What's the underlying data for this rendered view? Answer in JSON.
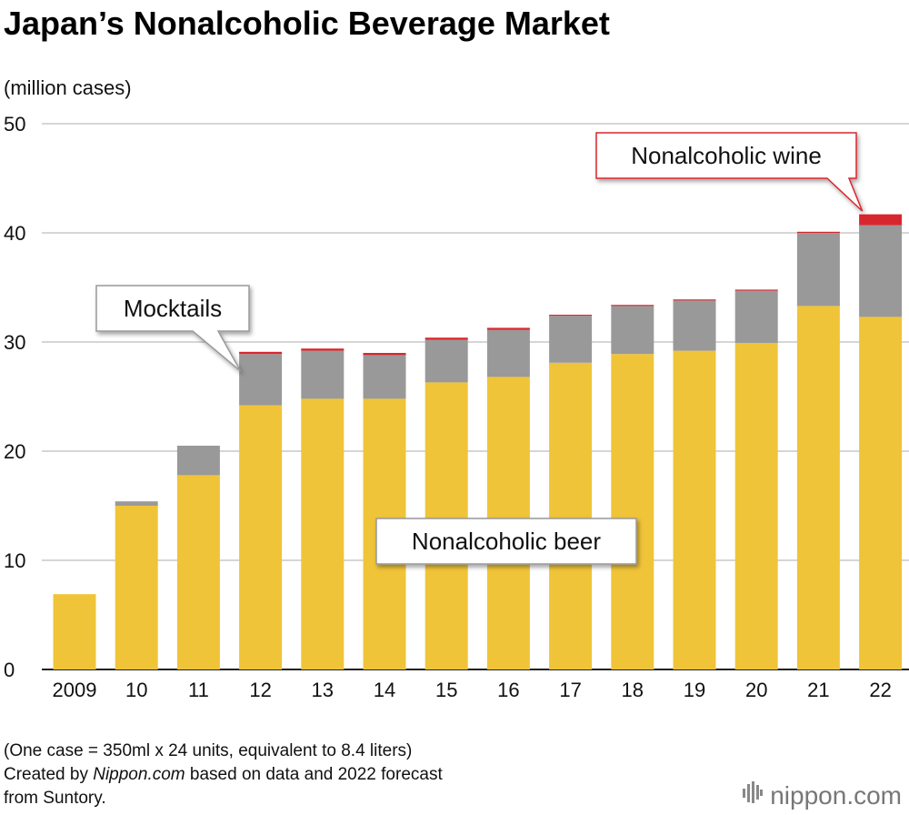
{
  "chart_data": {
    "type": "bar",
    "stacked": true,
    "title": "Japan’s Nonalcoholic Beverage Market",
    "ylabel": "(million cases)",
    "ylim": [
      0,
      50
    ],
    "yticks": [
      0,
      10,
      20,
      30,
      40,
      50
    ],
    "grid": true,
    "categories": [
      "2009",
      "10",
      "11",
      "12",
      "13",
      "14",
      "15",
      "16",
      "17",
      "18",
      "19",
      "20",
      "21",
      "22"
    ],
    "series": [
      {
        "name": "Nonalcoholic beer",
        "color": "#F0C438",
        "values": [
          6.9,
          15.0,
          17.8,
          24.2,
          24.8,
          24.8,
          26.3,
          26.8,
          28.1,
          28.9,
          29.2,
          29.9,
          33.3,
          32.3
        ]
      },
      {
        "name": "Mocktails",
        "color": "#999999",
        "values": [
          0.0,
          0.4,
          2.7,
          4.7,
          4.4,
          4.0,
          3.9,
          4.3,
          4.3,
          4.4,
          4.6,
          4.8,
          6.7,
          8.4
        ]
      },
      {
        "name": "Nonalcoholic wine",
        "color": "#D9262E",
        "values": [
          0.0,
          0.0,
          0.0,
          0.2,
          0.2,
          0.2,
          0.2,
          0.2,
          0.1,
          0.1,
          0.1,
          0.1,
          0.1,
          1.0
        ]
      }
    ]
  },
  "footnotes": {
    "line1": "(One case = 350ml x 24 units, equivalent to 8.4 liters)",
    "line2_prefix": "Created by ",
    "line2_source": "Nippon.com",
    "line2_suffix": " based on data and 2022 forecast",
    "line3": "from Suntory."
  },
  "logo": {
    "text": "nippon.com",
    "icon": "nippon-logo-icon"
  }
}
